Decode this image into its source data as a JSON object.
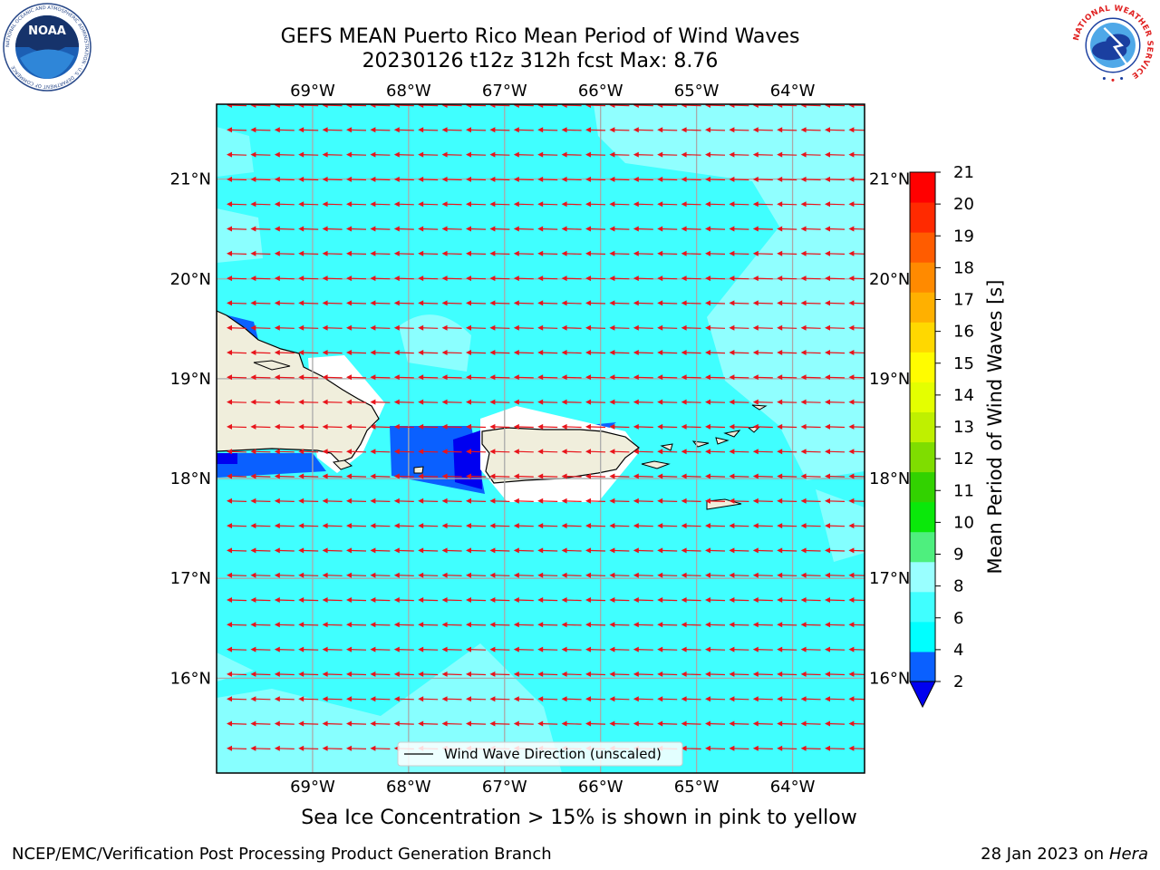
{
  "header": {
    "title_line1": "GEFS MEAN Puerto Rico Mean Period of Wind Waves",
    "title_line2": "20230126 t12z 312h fcst   Max: 8.76"
  },
  "logos": {
    "noaa": {
      "text": "NOAA",
      "ring_text": "NATIONAL OCEANIC AND ATMOSPHERIC ADMINISTRATION · U.S. DEPARTMENT OF COMMERCE",
      "icon": "noaa-logo-icon"
    },
    "nws": {
      "ring_text": "NATIONAL WEATHER SERVICE",
      "icon": "nws-logo-icon"
    }
  },
  "map": {
    "lon_labels": [
      "69°W",
      "68°W",
      "67°W",
      "66°W",
      "65°W",
      "64°W"
    ],
    "lat_labels": [
      "21°N",
      "20°N",
      "19°N",
      "18°N",
      "17°N",
      "16°N"
    ],
    "extent": {
      "lon_min": -70.0,
      "lon_max": -63.25,
      "lat_min": 15.05,
      "lat_max": 21.75
    },
    "land": [
      "Hispaniola",
      "Puerto Rico",
      "Virgin Islands",
      "St. Croix",
      "Mona Island"
    ],
    "arrow_color": "#e8141b",
    "legend_label": "Wind Wave Direction (unscaled)",
    "wind_direction": "from east"
  },
  "colorbar": {
    "label": "Mean Period of Wind Waves [s]",
    "ticks": [
      "2",
      "4",
      "6",
      "8",
      "9",
      "10",
      "11",
      "12",
      "13",
      "14",
      "15",
      "16",
      "17",
      "18",
      "19",
      "20",
      "21"
    ],
    "colors": [
      "#0a60ff",
      "#00ffff",
      "#40ffff",
      "#99ffff",
      "#4eef7e",
      "#0ae80a",
      "#32d200",
      "#7fdd00",
      "#bff000",
      "#e4ff00",
      "#fffc00",
      "#ffd800",
      "#ffb000",
      "#ff8a00",
      "#ff5c00",
      "#ff2a00",
      "#ff0000"
    ],
    "under_color": "#0000f0"
  },
  "footer": {
    "note": "Sea Ice Concentration > 15% is shown in pink to yellow",
    "left": "NCEP/EMC/Verification Post Processing Product Generation Branch",
    "date": "28 Jan 2023 on",
    "machine": "Hera"
  }
}
